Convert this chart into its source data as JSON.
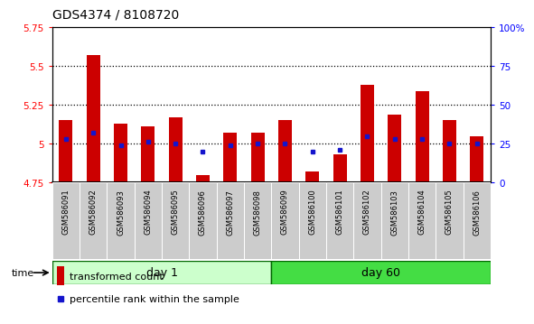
{
  "title": "GDS4374 / 8108720",
  "samples": [
    "GSM586091",
    "GSM586092",
    "GSM586093",
    "GSM586094",
    "GSM586095",
    "GSM586096",
    "GSM586097",
    "GSM586098",
    "GSM586099",
    "GSM586100",
    "GSM586101",
    "GSM586102",
    "GSM586103",
    "GSM586104",
    "GSM586105",
    "GSM586106"
  ],
  "transformed_count": [
    5.15,
    5.57,
    5.13,
    5.11,
    5.17,
    4.8,
    5.07,
    5.07,
    5.15,
    4.82,
    4.93,
    5.38,
    5.19,
    5.34,
    5.15,
    5.05
  ],
  "baseline": 4.75,
  "percentile_rank": [
    28,
    32,
    24,
    26,
    25,
    20,
    24,
    25,
    25,
    20,
    21,
    30,
    28,
    28,
    25,
    25
  ],
  "ylim_left": [
    4.75,
    5.75
  ],
  "ylim_right": [
    0,
    100
  ],
  "yticks_left": [
    4.75,
    5.0,
    5.25,
    5.5,
    5.75
  ],
  "yticks_right": [
    0,
    25,
    50,
    75,
    100
  ],
  "ytick_labels_left": [
    "4.75",
    "5",
    "5.25",
    "5.5",
    "5.75"
  ],
  "ytick_labels_right": [
    "0",
    "25",
    "50",
    "75",
    "100%"
  ],
  "hlines": [
    5.0,
    5.25,
    5.5
  ],
  "day1_count": 8,
  "day60_count": 8,
  "day1_label": "day 1",
  "day60_label": "day 60",
  "time_label": "time",
  "bar_color": "#cc0000",
  "dot_color": "#1414cc",
  "day1_bg": "#ccffcc",
  "day60_bg": "#44dd44",
  "xticklabel_bg": "#cccccc",
  "border_color": "#006600",
  "legend_bar_label": "transformed count",
  "legend_dot_label": "percentile rank within the sample",
  "bar_width": 0.5,
  "title_fontsize": 10,
  "tick_fontsize": 7.5,
  "xtick_fontsize": 6,
  "day_fontsize": 9,
  "legend_fontsize": 8
}
